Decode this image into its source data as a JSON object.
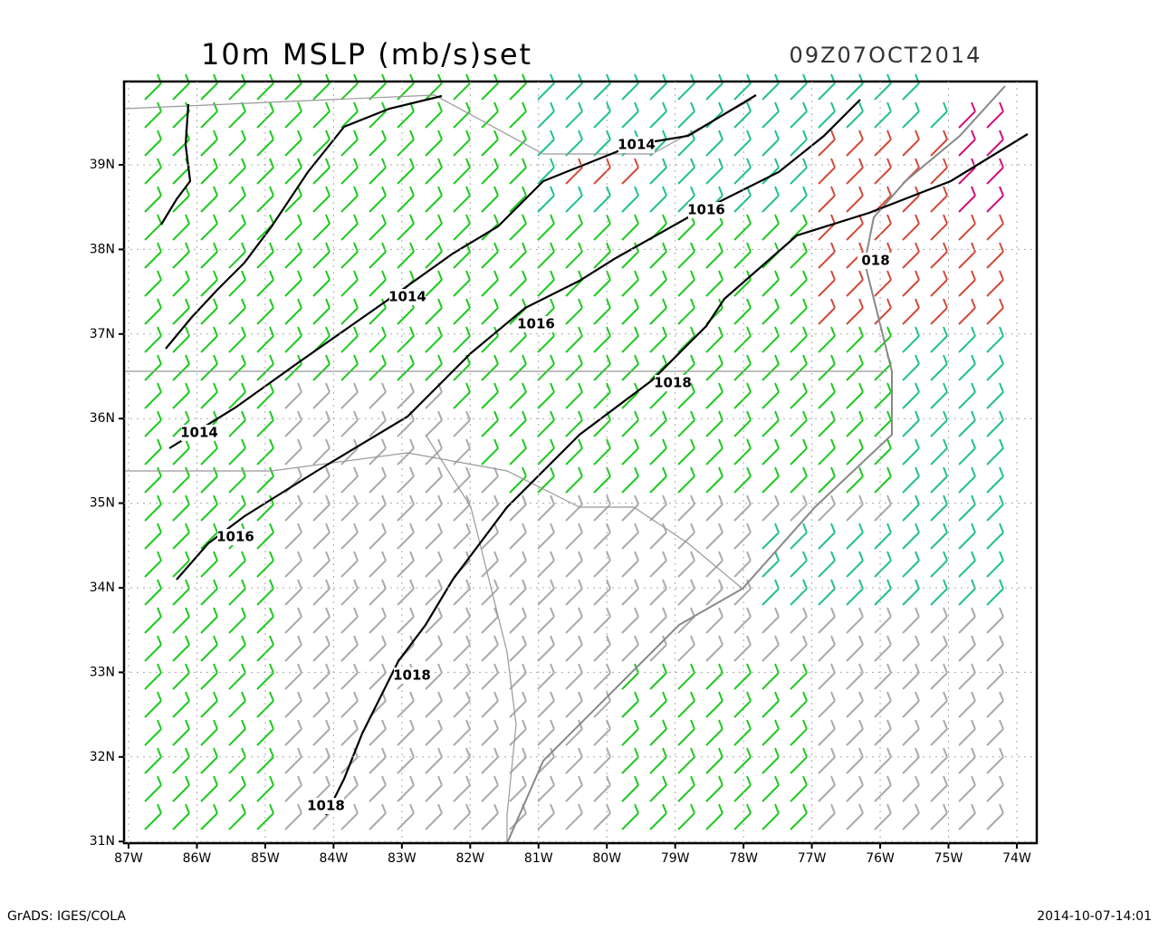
{
  "header": {
    "title": "10m MSLP (mb/s)set",
    "valid_time": "09Z07OCT2014"
  },
  "map": {
    "lat_labels": [
      "39N",
      "38N",
      "37N",
      "36N",
      "35N",
      "34N",
      "33N",
      "32N",
      "31N"
    ],
    "lon_labels": [
      "87W",
      "86W",
      "85W",
      "84W",
      "83W",
      "82W",
      "81W",
      "80W",
      "79W",
      "78W",
      "77W",
      "76W",
      "75W",
      "74W"
    ],
    "contour_labels": [
      "1014",
      "1014",
      "1014",
      "1016",
      "1016",
      "1016",
      "1018",
      "1018",
      "1018",
      "018"
    ]
  },
  "footer": {
    "left": "GrADS: IGES/COLA",
    "right": "2014-10-07-14:01"
  }
}
